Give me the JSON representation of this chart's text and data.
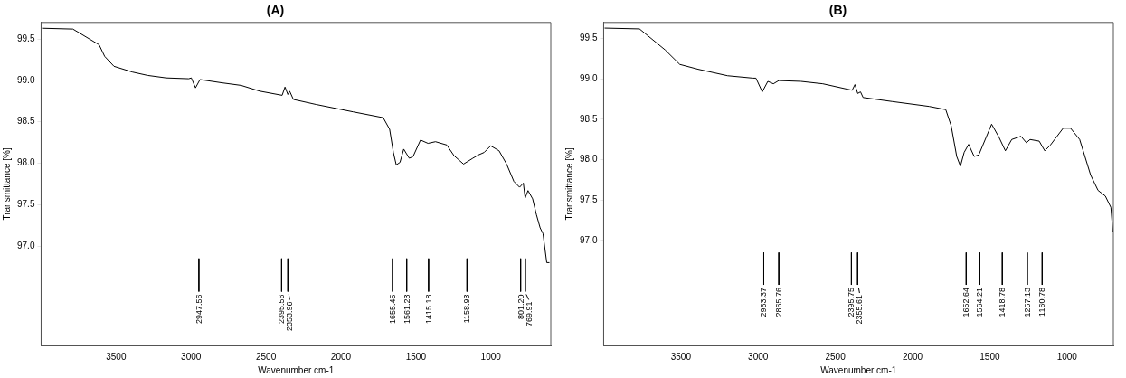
{
  "chart_data": [
    {
      "type": "line",
      "title": "(A)",
      "xlabel": "Wavenumber cm-1",
      "ylabel": "Transmittance [%]",
      "xlim": [
        4000,
        600
      ],
      "xticks": [
        3500,
        3000,
        2500,
        2000,
        1500,
        1000
      ],
      "ylim": [
        95.8,
        99.7
      ],
      "yticks": [
        {
          "value": 97,
          "label": "97.0"
        },
        {
          "value": 97.5,
          "label": "97.5"
        },
        {
          "value": 98,
          "label": "98.0"
        },
        {
          "value": 98.5,
          "label": "98.5"
        },
        {
          "value": 99,
          "label": "99.0"
        },
        {
          "value": 99.5,
          "label": "99.5"
        }
      ],
      "grid": false,
      "legend": false,
      "marker": "none",
      "line_style": "solid",
      "series": [
        {
          "color": "#000000",
          "x": [
            3994,
            3788,
            3613,
            3576,
            3514,
            3389,
            3289,
            3165,
            3015,
            2998,
            2970,
            2940,
            2791,
            2666,
            2541,
            2392,
            2373,
            2354,
            2342,
            2317,
            2167,
            1918,
            1718,
            1675,
            1650,
            1631,
            1606,
            1581,
            1544,
            1519,
            1469,
            1419,
            1369,
            1294,
            1245,
            1182,
            1120,
            1083,
            1045,
            1001,
            945,
            895,
            846,
            808,
            783,
            771,
            752,
            721,
            696,
            671,
            652,
            627,
            609
          ],
          "values": [
            99.63,
            99.62,
            99.43,
            99.29,
            99.17,
            99.1,
            99.06,
            99.03,
            99.02,
            99.03,
            98.91,
            99.01,
            98.97,
            98.94,
            98.87,
            98.82,
            98.92,
            98.83,
            98.87,
            98.77,
            98.71,
            98.62,
            98.55,
            98.41,
            98.13,
            97.98,
            98.01,
            98.17,
            98.06,
            98.08,
            98.28,
            98.24,
            98.26,
            98.22,
            98.09,
            97.99,
            98.06,
            98.1,
            98.13,
            98.21,
            98.15,
            97.99,
            97.78,
            97.71,
            97.76,
            97.58,
            97.67,
            97.57,
            97.38,
            97.22,
            97.15,
            96.8,
            96.8
          ]
        },
        {
          "type": "line",
          "color": "#000000",
          "x": [
            2947.56,
            2947.56
          ],
          "values": [
            96.85,
            96.45
          ]
        },
        {
          "type": "line",
          "color": "#000000",
          "x": [
            2395.56,
            2395.56
          ],
          "values": [
            96.85,
            96.45
          ]
        },
        {
          "type": "line",
          "color": "#000000",
          "x": [
            2353.96,
            2353.96
          ],
          "values": [
            96.85,
            96.45
          ]
        },
        {
          "type": "line",
          "color": "#000000",
          "x": [
            1655.45,
            1655.45
          ],
          "values": [
            96.85,
            96.45
          ]
        },
        {
          "type": "line",
          "color": "#000000",
          "x": [
            1561.23,
            1561.23
          ],
          "values": [
            96.85,
            96.45
          ]
        },
        {
          "type": "line",
          "color": "#000000",
          "x": [
            1415.18,
            1415.18
          ],
          "values": [
            96.85,
            96.45
          ]
        },
        {
          "type": "line",
          "color": "#000000",
          "x": [
            1158.93,
            1158.93
          ],
          "values": [
            96.85,
            96.45
          ]
        },
        {
          "type": "line",
          "color": "#000000",
          "x": [
            801.2,
            801.2
          ],
          "values": [
            96.85,
            96.45
          ]
        },
        {
          "type": "line",
          "color": "#000000",
          "x": [
            769.91,
            769.91
          ],
          "values": [
            96.85,
            96.45
          ]
        }
      ],
      "annotations": [
        {
          "text": "2947.56",
          "x": 2947.56,
          "y": 96.45
        },
        {
          "text": "2395.56",
          "x": 2395.56,
          "y": 96.45
        },
        {
          "text": "2353.96",
          "x": 2353.96,
          "y": 96.45
        },
        {
          "text": "1655.45",
          "x": 1655.45,
          "y": 96.45
        },
        {
          "text": "1561.23",
          "x": 1561.23,
          "y": 96.45
        },
        {
          "text": "1415.18",
          "x": 1415.18,
          "y": 96.45
        },
        {
          "text": "1158.93",
          "x": 1158.93,
          "y": 96.45
        },
        {
          "text": "801.20",
          "x": 801.2,
          "y": 96.45
        },
        {
          "text": "769.91",
          "x": 769.91,
          "y": 96.45
        }
      ]
    },
    {
      "type": "line",
      "title": "(B)",
      "xlabel": "Wavenumber cm-1",
      "ylabel": "Transmittance [%]",
      "xlim": [
        4000,
        700
      ],
      "xticks": [
        3500,
        3000,
        2500,
        2000,
        1500,
        1000
      ],
      "ylim": [
        95.7,
        99.7
      ],
      "yticks": [
        {
          "value": 97,
          "label": "97.0"
        },
        {
          "value": 97.5,
          "label": "97.5"
        },
        {
          "value": 98,
          "label": "98.0"
        },
        {
          "value": 98.5,
          "label": "98.5"
        },
        {
          "value": 99,
          "label": "99.0"
        },
        {
          "value": 99.5,
          "label": "99.5"
        }
      ],
      "grid": false,
      "legend": false,
      "marker": "none",
      "line_style": "solid",
      "series": [
        {
          "color": "#000000",
          "x": [
            3994,
            3768,
            3602,
            3507,
            3388,
            3198,
            3032,
            3014,
            2973,
            2937,
            2901,
            2866,
            2723,
            2581,
            2391,
            2373,
            2355,
            2337,
            2320,
            2130,
            1892,
            1785,
            1750,
            1714,
            1690,
            1666,
            1637,
            1601,
            1571,
            1488,
            1441,
            1399,
            1358,
            1298,
            1263,
            1239,
            1180,
            1144,
            1108,
            1025,
            977,
            918,
            847,
            799,
            752,
            716,
            703
          ],
          "values": [
            99.63,
            99.62,
            99.36,
            99.18,
            99.12,
            99.04,
            99.01,
            99.01,
            98.84,
            98.97,
            98.94,
            98.98,
            98.97,
            98.94,
            98.86,
            98.93,
            98.82,
            98.84,
            98.77,
            98.72,
            98.66,
            98.62,
            98.42,
            98.04,
            97.92,
            98.09,
            98.19,
            98.04,
            98.06,
            98.44,
            98.28,
            98.11,
            98.25,
            98.29,
            98.21,
            98.25,
            98.23,
            98.11,
            98.18,
            98.39,
            98.39,
            98.25,
            97.81,
            97.62,
            97.55,
            97.41,
            97.1
          ]
        },
        {
          "type": "line",
          "color": "#000000",
          "x": [
            2963.37,
            2963.37
          ],
          "values": [
            96.85,
            96.45
          ]
        },
        {
          "type": "line",
          "color": "#000000",
          "x": [
            2865.76,
            2865.76
          ],
          "values": [
            96.85,
            96.45
          ]
        },
        {
          "type": "line",
          "color": "#000000",
          "x": [
            2395.75,
            2395.75
          ],
          "values": [
            96.85,
            96.45
          ]
        },
        {
          "type": "line",
          "color": "#000000",
          "x": [
            2355.61,
            2355.61
          ],
          "values": [
            96.85,
            96.45
          ]
        },
        {
          "type": "line",
          "color": "#000000",
          "x": [
            1652.64,
            1652.64
          ],
          "values": [
            96.85,
            96.45
          ]
        },
        {
          "type": "line",
          "color": "#000000",
          "x": [
            1564.21,
            1564.21
          ],
          "values": [
            96.85,
            96.45
          ]
        },
        {
          "type": "line",
          "color": "#000000",
          "x": [
            1418.78,
            1418.78
          ],
          "values": [
            96.85,
            96.45
          ]
        },
        {
          "type": "line",
          "color": "#000000",
          "x": [
            1257.13,
            1257.13
          ],
          "values": [
            96.85,
            96.45
          ]
        },
        {
          "type": "line",
          "color": "#000000",
          "x": [
            1160.78,
            1160.78
          ],
          "values": [
            96.85,
            96.45
          ]
        }
      ],
      "annotations": [
        {
          "text": "2963.37",
          "x": 2963.37,
          "y": 96.45
        },
        {
          "text": "2865.76",
          "x": 2865.76,
          "y": 96.45
        },
        {
          "text": "2395.75",
          "x": 2395.75,
          "y": 96.45
        },
        {
          "text": "2355.61",
          "x": 2355.61,
          "y": 96.45
        },
        {
          "text": "1652.64",
          "x": 1652.64,
          "y": 96.45
        },
        {
          "text": "1564.21",
          "x": 1564.21,
          "y": 96.45
        },
        {
          "text": "1418.78",
          "x": 1418.78,
          "y": 96.45
        },
        {
          "text": "1257.13",
          "x": 1257.13,
          "y": 96.45
        },
        {
          "text": "1160.78",
          "x": 1160.78,
          "y": 96.45
        }
      ]
    }
  ]
}
